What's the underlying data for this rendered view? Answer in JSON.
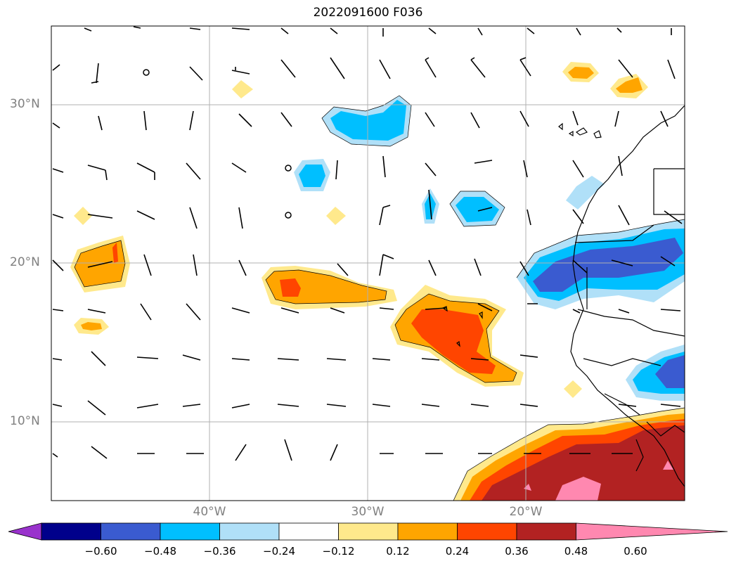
{
  "title": "2022091600 F036",
  "latitude_labels": [
    "30°N",
    "20°N",
    "10°N"
  ],
  "longitude_labels": [
    "40°W",
    "30°W",
    "20°W"
  ],
  "colorbar": {
    "ticks": [
      "−0.60",
      "−0.48",
      "−0.36",
      "−0.24",
      "−0.12",
      "0.12",
      "0.24",
      "0.36",
      "0.48",
      "0.60"
    ],
    "colors": [
      "#9932cc",
      "#00008b",
      "#3a5bd0",
      "#00bfff",
      "#b0e0f8",
      "#ffffff",
      "#ffe98c",
      "#ffa500",
      "#ff4500",
      "#b22222",
      "#ff88b0"
    ],
    "extend": "both"
  },
  "map": {
    "domain": "North Atlantic / West Africa",
    "gridlines": true,
    "features": [
      "coastlines",
      "country borders",
      "wind barbs",
      "filled contours"
    ]
  }
}
